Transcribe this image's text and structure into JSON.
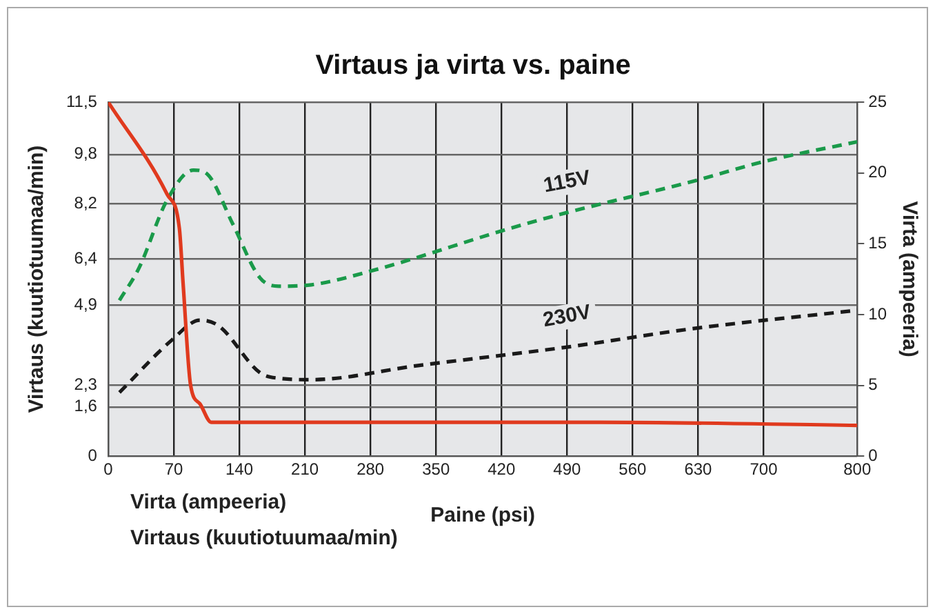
{
  "chart_data": {
    "type": "line",
    "title": "Virtaus ja virta vs. paine",
    "xlabel": "Paine (psi)",
    "ylabel": "Virtaus (kuutiotuumaa/min)",
    "y2label": "Virta (ampeeria)",
    "annotations": [
      "Virta (ampeeria)",
      "Virtaus (kuutiotuumaa/min)"
    ],
    "xlim": [
      0,
      800
    ],
    "xticks": [
      0,
      70,
      140,
      210,
      280,
      350,
      420,
      490,
      560,
      630,
      700,
      800
    ],
    "ylim": [
      0,
      11.5
    ],
    "yticks": [
      0,
      {
        "value": 1.6,
        "label": "1,6"
      },
      {
        "value": 2.3,
        "label": "2,3"
      },
      {
        "value": 4.9,
        "label": "4,9"
      },
      {
        "value": 6.4,
        "label": "6,4"
      },
      {
        "value": 8.2,
        "label": "8,2"
      },
      {
        "value": 9.8,
        "label": "9,8"
      },
      {
        "value": 11.5,
        "label": "11,5"
      }
    ],
    "y2lim": [
      0,
      25
    ],
    "y2ticks": [
      0,
      5,
      10,
      15,
      20,
      25
    ],
    "grid": true,
    "legend": false,
    "marker": "none",
    "series": [
      {
        "color": "#e03a1e",
        "line_style": "solid",
        "x": [
          0,
          63,
          76,
          80,
          88,
          98,
          110,
          525,
          800
        ],
        "values": [
          11.5,
          8.5,
          7.4,
          5.6,
          2.3,
          1.7,
          1.1,
          1.1,
          1.0
        ]
      },
      {
        "name": "115V",
        "axis": "y2",
        "color": "#1a9a4a",
        "line_style": "dashed",
        "x": [
          12,
          33,
          63,
          91,
          106,
          133,
          162,
          182,
          217,
          282,
          430,
          490,
          624,
          700,
          800
        ],
        "values": [
          11.0,
          13.3,
          18.1,
          20.2,
          19.9,
          16.4,
          12.6,
          12.0,
          12.1,
          13.1,
          16.1,
          17.2,
          19.4,
          20.8,
          22.2
        ]
      },
      {
        "name": "230V",
        "axis": "y2",
        "color": "#1a1a1a",
        "line_style": "dashed",
        "x": [
          12,
          68,
          98,
          118,
          162,
          182,
          217,
          331,
          430,
          490,
          624,
          800
        ],
        "values": [
          4.5,
          8.2,
          9.6,
          9.2,
          5.9,
          5.5,
          5.4,
          6.4,
          7.2,
          7.7,
          9.0,
          10.3
        ]
      }
    ]
  }
}
